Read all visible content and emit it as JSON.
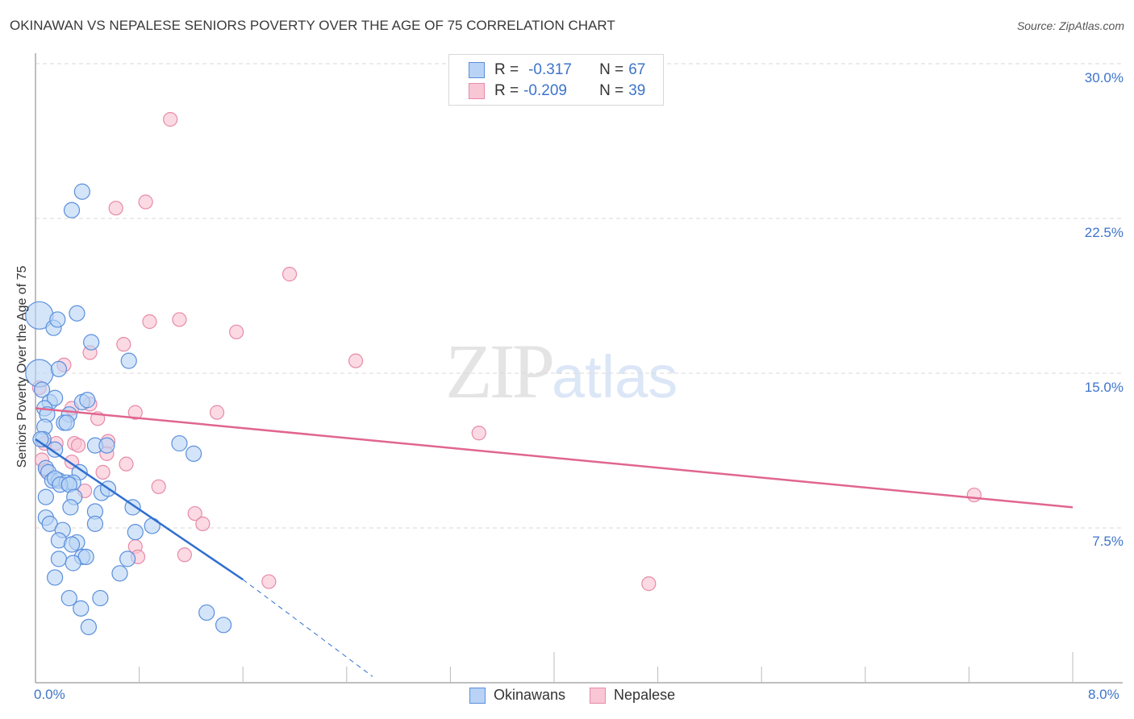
{
  "header": {
    "title": "OKINAWAN VS NEPALESE SENIORS POVERTY OVER THE AGE OF 75 CORRELATION CHART",
    "source": "Source: ZipAtlas.com"
  },
  "legend": {
    "rows": [
      {
        "r_label": "R =",
        "r_value": "-0.317",
        "n_label": "N =",
        "n_value": "67",
        "series": "Okinawans"
      },
      {
        "r_label": "R =",
        "r_value": "-0.209",
        "n_label": "N =",
        "n_value": "39",
        "series": "Nepalese"
      }
    ],
    "bottom": [
      {
        "label": "Okinawans"
      },
      {
        "label": "Nepalese"
      }
    ]
  },
  "axes": {
    "y_label": "Seniors Poverty Over the Age of 75",
    "y_ticks": [
      "30.0%",
      "22.5%",
      "15.0%",
      "7.5%"
    ],
    "x_min_label": "0.0%",
    "x_max_label": "8.0%"
  },
  "watermark": {
    "zip": "ZIP",
    "atlas": "atlas"
  },
  "colors": {
    "okinawans_fill": "#b8d3f5",
    "okinawans_stroke": "#5b8fdc",
    "okinawans_line": "#2f6fcf",
    "nepalese_fill": "#f9c6d6",
    "nepalese_stroke": "#e78aa8",
    "nepalese_line": "#e0668f",
    "tick_text": "#3d74c9",
    "grid": "#d9d9d9"
  },
  "chart_data": {
    "type": "scatter",
    "title": "OKINAWAN VS NEPALESE SENIORS POVERTY OVER THE AGE OF 75 CORRELATION CHART",
    "xlabel": "",
    "ylabel": "Seniors Poverty Over the Age of 75",
    "xlim": [
      0,
      8
    ],
    "ylim": [
      0,
      31
    ],
    "x_unit": "%",
    "y_unit": "%",
    "y_gridlines": [
      7.5,
      15.0,
      22.5,
      30.0
    ],
    "grid": true,
    "legend_position": "top-center and bottom",
    "series": [
      {
        "name": "Okinawans",
        "R": -0.317,
        "N": 67,
        "trend": {
          "x0": 0.0,
          "y0": 11.8,
          "x1": 1.6,
          "y1": 5.0,
          "dashed_to": {
            "x": 2.6,
            "y": 0.3
          }
        },
        "points": [
          [
            0.36,
            23.8
          ],
          [
            0.28,
            22.9
          ],
          [
            0.03,
            17.8
          ],
          [
            0.32,
            17.9
          ],
          [
            0.14,
            17.2
          ],
          [
            0.17,
            17.6
          ],
          [
            0.43,
            16.5
          ],
          [
            0.72,
            15.6
          ],
          [
            0.03,
            15.0
          ],
          [
            0.18,
            15.2
          ],
          [
            0.05,
            14.2
          ],
          [
            0.11,
            13.6
          ],
          [
            0.15,
            13.8
          ],
          [
            0.36,
            13.6
          ],
          [
            0.4,
            13.7
          ],
          [
            0.07,
            13.3
          ],
          [
            0.09,
            13.0
          ],
          [
            0.26,
            13.0
          ],
          [
            0.22,
            12.6
          ],
          [
            0.24,
            12.6
          ],
          [
            0.07,
            12.4
          ],
          [
            0.06,
            11.8
          ],
          [
            0.04,
            11.8
          ],
          [
            0.15,
            11.3
          ],
          [
            0.46,
            11.5
          ],
          [
            0.55,
            11.5
          ],
          [
            1.11,
            11.6
          ],
          [
            1.22,
            11.1
          ],
          [
            0.08,
            10.4
          ],
          [
            0.1,
            10.2
          ],
          [
            0.34,
            10.2
          ],
          [
            0.13,
            9.8
          ],
          [
            0.18,
            9.8
          ],
          [
            0.15,
            9.9
          ],
          [
            0.24,
            9.7
          ],
          [
            0.29,
            9.7
          ],
          [
            0.19,
            9.6
          ],
          [
            0.26,
            9.6
          ],
          [
            0.51,
            9.2
          ],
          [
            0.56,
            9.4
          ],
          [
            0.08,
            9.0
          ],
          [
            0.3,
            9.0
          ],
          [
            0.75,
            8.5
          ],
          [
            0.27,
            8.5
          ],
          [
            0.46,
            8.3
          ],
          [
            0.08,
            8.0
          ],
          [
            0.11,
            7.7
          ],
          [
            0.46,
            7.7
          ],
          [
            0.9,
            7.6
          ],
          [
            0.77,
            7.3
          ],
          [
            0.21,
            7.4
          ],
          [
            0.18,
            6.9
          ],
          [
            0.32,
            6.8
          ],
          [
            0.28,
            6.7
          ],
          [
            0.18,
            6.0
          ],
          [
            0.36,
            6.1
          ],
          [
            0.39,
            6.1
          ],
          [
            0.71,
            6.0
          ],
          [
            0.29,
            5.8
          ],
          [
            0.65,
            5.3
          ],
          [
            0.15,
            5.1
          ],
          [
            0.26,
            4.1
          ],
          [
            0.5,
            4.1
          ],
          [
            0.35,
            3.6
          ],
          [
            1.32,
            3.4
          ],
          [
            0.41,
            2.7
          ],
          [
            1.45,
            2.8
          ]
        ]
      },
      {
        "name": "Nepalese",
        "R": -0.209,
        "N": 39,
        "trend": {
          "x0": 0.0,
          "y0": 13.3,
          "x1": 8.0,
          "y1": 8.5
        },
        "points": [
          [
            1.04,
            27.3
          ],
          [
            0.85,
            23.3
          ],
          [
            0.62,
            23.0
          ],
          [
            1.96,
            19.8
          ],
          [
            0.88,
            17.5
          ],
          [
            1.11,
            17.6
          ],
          [
            1.55,
            17.0
          ],
          [
            0.68,
            16.4
          ],
          [
            0.42,
            16.0
          ],
          [
            2.47,
            15.6
          ],
          [
            0.22,
            15.4
          ],
          [
            0.03,
            14.3
          ],
          [
            0.42,
            13.5
          ],
          [
            0.28,
            13.3
          ],
          [
            0.77,
            13.1
          ],
          [
            1.4,
            13.1
          ],
          [
            0.48,
            12.8
          ],
          [
            3.42,
            12.1
          ],
          [
            0.56,
            11.7
          ],
          [
            0.3,
            11.6
          ],
          [
            0.16,
            11.6
          ],
          [
            0.33,
            11.5
          ],
          [
            0.07,
            11.6
          ],
          [
            0.55,
            11.1
          ],
          [
            0.28,
            10.7
          ],
          [
            0.05,
            10.8
          ],
          [
            0.7,
            10.6
          ],
          [
            0.08,
            10.3
          ],
          [
            0.52,
            10.2
          ],
          [
            0.38,
            9.3
          ],
          [
            0.95,
            9.5
          ],
          [
            1.23,
            8.2
          ],
          [
            1.29,
            7.7
          ],
          [
            0.77,
            6.6
          ],
          [
            0.79,
            6.1
          ],
          [
            1.15,
            6.2
          ],
          [
            1.8,
            4.9
          ],
          [
            4.73,
            4.8
          ],
          [
            7.24,
            9.1
          ]
        ]
      }
    ]
  }
}
